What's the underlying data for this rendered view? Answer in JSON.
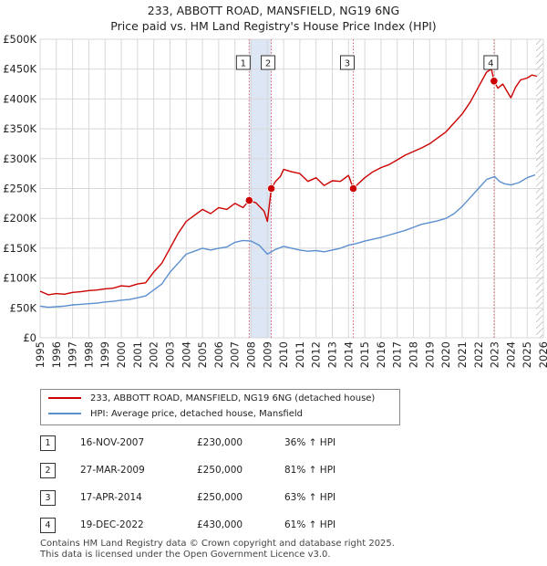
{
  "chart_data": {
    "type": "line",
    "title": "233, ABBOTT ROAD, MANSFIELD, NG19 6NG",
    "subtitle": "Price paid vs. HM Land Registry's House Price Index (HPI)",
    "xlabel": "",
    "ylabel": "",
    "xlim": [
      1995,
      2026
    ],
    "ylim": [
      0,
      500000
    ],
    "x_ticks": [
      "1995",
      "1996",
      "1997",
      "1998",
      "1999",
      "2000",
      "2001",
      "2002",
      "2003",
      "2004",
      "2005",
      "2006",
      "2007",
      "2008",
      "2009",
      "2010",
      "2011",
      "2012",
      "2013",
      "2014",
      "2015",
      "2016",
      "2017",
      "2018",
      "2019",
      "2020",
      "2021",
      "2022",
      "2023",
      "2024",
      "2025",
      "2026"
    ],
    "y_ticks": [
      {
        "value": 0,
        "label": "£0"
      },
      {
        "value": 50000,
        "label": "£50K"
      },
      {
        "value": 100000,
        "label": "£100K"
      },
      {
        "value": 150000,
        "label": "£150K"
      },
      {
        "value": 200000,
        "label": "£200K"
      },
      {
        "value": 250000,
        "label": "£250K"
      },
      {
        "value": 300000,
        "label": "£300K"
      },
      {
        "value": 350000,
        "label": "£350K"
      },
      {
        "value": 400000,
        "label": "£400K"
      },
      {
        "value": 450000,
        "label": "£450K"
      },
      {
        "value": 500000,
        "label": "£500K"
      }
    ],
    "series": [
      {
        "name": "233, ABBOTT ROAD, MANSFIELD, NG19 6NG (detached house)",
        "color": "#cc0000",
        "x": [
          1995.0,
          1995.5,
          1996.0,
          1996.5,
          1997.0,
          1997.5,
          1998.0,
          1998.5,
          1999.0,
          1999.5,
          2000.0,
          2000.5,
          2001.0,
          2001.5,
          2002.0,
          2002.5,
          2003.0,
          2003.5,
          2004.0,
          2004.5,
          2005.0,
          2005.5,
          2006.0,
          2006.5,
          2007.0,
          2007.5,
          2007.88,
          2008.3,
          2008.8,
          2009.0,
          2009.24,
          2009.5,
          2009.8,
          2010.0,
          2010.5,
          2011.0,
          2011.5,
          2012.0,
          2012.5,
          2013.0,
          2013.5,
          2014.0,
          2014.29,
          2014.6,
          2015.0,
          2015.5,
          2016.0,
          2016.5,
          2017.0,
          2017.5,
          2018.0,
          2018.5,
          2019.0,
          2019.5,
          2020.0,
          2020.5,
          2021.0,
          2021.5,
          2022.0,
          2022.5,
          2022.8,
          2022.96,
          2023.2,
          2023.5,
          2024.0,
          2024.3,
          2024.6,
          2025.0,
          2025.3,
          2025.6
        ],
        "y": [
          78000,
          72000,
          74000,
          73000,
          76000,
          77000,
          79000,
          80000,
          82000,
          83000,
          87000,
          86000,
          90000,
          92000,
          110000,
          125000,
          150000,
          175000,
          195000,
          205000,
          215000,
          208000,
          218000,
          215000,
          225000,
          218000,
          230000,
          226000,
          212000,
          195000,
          250000,
          262000,
          270000,
          282000,
          278000,
          275000,
          262000,
          268000,
          255000,
          263000,
          262000,
          272000,
          250000,
          258000,
          268000,
          278000,
          285000,
          290000,
          298000,
          306000,
          312000,
          318000,
          325000,
          335000,
          345000,
          360000,
          375000,
          395000,
          420000,
          445000,
          450000,
          430000,
          418000,
          425000,
          402000,
          420000,
          432000,
          435000,
          440000,
          438000
        ]
      },
      {
        "name": "HPI: Average price, detached house, Mansfield",
        "color": "#5b8fd0",
        "x": [
          1995.0,
          1995.5,
          1996.0,
          1996.5,
          1997.0,
          1997.5,
          1998.0,
          1998.5,
          1999.0,
          1999.5,
          2000.0,
          2000.5,
          2001.0,
          2001.5,
          2002.0,
          2002.5,
          2003.0,
          2003.5,
          2004.0,
          2004.5,
          2005.0,
          2005.5,
          2006.0,
          2006.5,
          2007.0,
          2007.5,
          2008.0,
          2008.5,
          2009.0,
          2009.5,
          2010.0,
          2010.5,
          2011.0,
          2011.5,
          2012.0,
          2012.5,
          2013.0,
          2013.5,
          2014.0,
          2014.5,
          2015.0,
          2015.5,
          2016.0,
          2016.5,
          2017.0,
          2017.5,
          2018.0,
          2018.5,
          2019.0,
          2019.5,
          2020.0,
          2020.5,
          2021.0,
          2021.5,
          2022.0,
          2022.5,
          2023.0,
          2023.3,
          2023.6,
          2024.0,
          2024.5,
          2025.0,
          2025.5
        ],
        "y": [
          53000,
          51000,
          52000,
          53000,
          55000,
          56000,
          57000,
          58000,
          60000,
          61000,
          63000,
          64000,
          67000,
          70000,
          80000,
          90000,
          110000,
          125000,
          140000,
          145000,
          150000,
          147000,
          150000,
          152000,
          160000,
          163000,
          162000,
          155000,
          140000,
          148000,
          153000,
          150000,
          147000,
          145000,
          146000,
          144000,
          147000,
          150000,
          155000,
          158000,
          162000,
          165000,
          168000,
          172000,
          176000,
          180000,
          185000,
          190000,
          193000,
          196000,
          200000,
          208000,
          220000,
          235000,
          250000,
          265000,
          270000,
          262000,
          258000,
          256000,
          260000,
          268000,
          273000
        ]
      }
    ],
    "sale_markers": [
      {
        "label": "1",
        "x": 2007.88,
        "y": 230000
      },
      {
        "label": "2",
        "x": 2009.24,
        "y": 250000
      },
      {
        "label": "3",
        "x": 2014.29,
        "y": 250000
      },
      {
        "label": "4",
        "x": 2022.96,
        "y": 430000
      }
    ],
    "shaded_period": [
      2007.88,
      2009.24
    ]
  },
  "legend": {
    "property_label": "233, ABBOTT ROAD, MANSFIELD, NG19 6NG (detached house)",
    "hpi_label": "HPI: Average price, detached house, Mansfield"
  },
  "transactions": [
    {
      "num": "1",
      "date": "16-NOV-2007",
      "price": "£230,000",
      "hpi": "36% ↑ HPI"
    },
    {
      "num": "2",
      "date": "27-MAR-2009",
      "price": "£250,000",
      "hpi": "81% ↑ HPI"
    },
    {
      "num": "3",
      "date": "17-APR-2014",
      "price": "£250,000",
      "hpi": "63% ↑ HPI"
    },
    {
      "num": "4",
      "date": "19-DEC-2022",
      "price": "£430,000",
      "hpi": "61% ↑ HPI"
    }
  ],
  "footer": {
    "line1": "Contains HM Land Registry data © Crown copyright and database right 2025.",
    "line2": "This data is licensed under the Open Government Licence v3.0."
  },
  "colors": {
    "property": "#cc0000",
    "hpi": "#5b8fd0",
    "grid": "#d8d8d8",
    "shade": "#dde6f5",
    "future_hatch": "#9a9a9a"
  }
}
